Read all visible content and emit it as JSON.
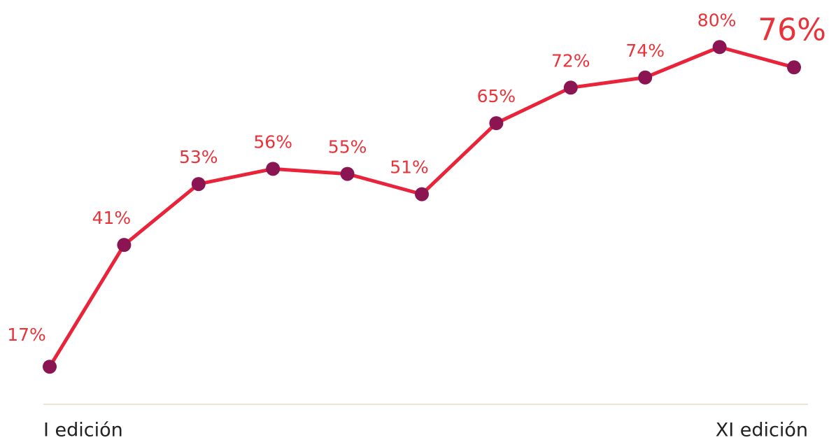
{
  "chart_data": {
    "type": "line",
    "categories": [
      "I edición",
      null,
      null,
      null,
      null,
      null,
      null,
      null,
      null,
      null,
      "XI edición"
    ],
    "series": [
      {
        "color": "#e8233a",
        "marker_color": "#8b1553",
        "values": [
          17,
          41,
          53,
          56,
          55,
          51,
          65,
          72,
          74,
          80,
          76
        ],
        "value_labels": [
          "17%",
          "41%",
          "53%",
          "56%",
          "55%",
          "51%",
          "65%",
          "72%",
          "74%",
          "80%",
          "76%"
        ]
      }
    ],
    "ylim": [
      10,
      85
    ]
  }
}
